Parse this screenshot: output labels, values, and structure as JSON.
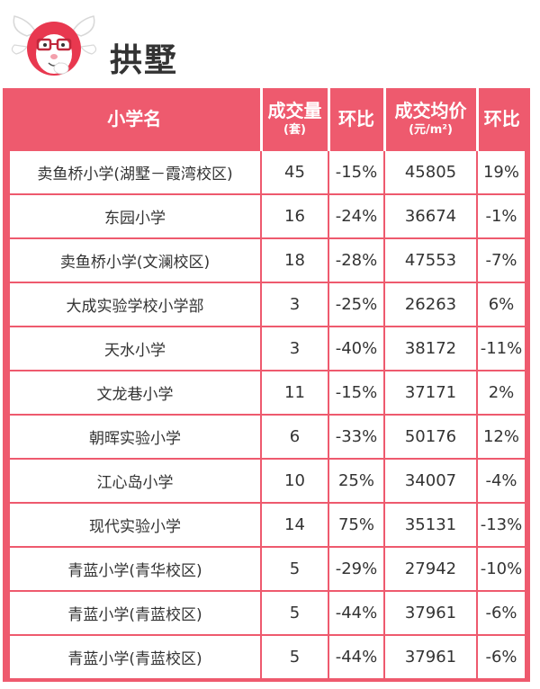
{
  "header": {
    "district": "拱墅"
  },
  "table": {
    "columns": [
      {
        "main": "小学名",
        "sub": ""
      },
      {
        "main": "成交量",
        "sub": "(套)"
      },
      {
        "main": "环比",
        "sub": ""
      },
      {
        "main": "成交均价",
        "sub": "(元/m²)"
      },
      {
        "main": "环比",
        "sub": ""
      }
    ],
    "rows": [
      {
        "name": "卖鱼桥小学(湖墅－霞湾校区)",
        "volume": "45",
        "volume_change": "-15%",
        "avg_price": "45805",
        "price_change": "19%"
      },
      {
        "name": "东园小学",
        "volume": "16",
        "volume_change": "-24%",
        "avg_price": "36674",
        "price_change": "-1%"
      },
      {
        "name": "卖鱼桥小学(文澜校区)",
        "volume": "18",
        "volume_change": "-28%",
        "avg_price": "47553",
        "price_change": "-7%"
      },
      {
        "name": "大成实验学校小学部",
        "volume": "3",
        "volume_change": "-25%",
        "avg_price": "26263",
        "price_change": "6%"
      },
      {
        "name": "天水小学",
        "volume": "3",
        "volume_change": "-40%",
        "avg_price": "38172",
        "price_change": "-11%"
      },
      {
        "name": "文龙巷小学",
        "volume": "11",
        "volume_change": "-15%",
        "avg_price": "37171",
        "price_change": "2%"
      },
      {
        "name": "朝晖实验小学",
        "volume": "6",
        "volume_change": "-33%",
        "avg_price": "50176",
        "price_change": "12%"
      },
      {
        "name": "江心岛小学",
        "volume": "10",
        "volume_change": "25%",
        "avg_price": "34007",
        "price_change": "-4%"
      },
      {
        "name": "现代实验小学",
        "volume": "14",
        "volume_change": "75%",
        "avg_price": "35131",
        "price_change": "-13%"
      },
      {
        "name": "青蓝小学(青华校区)",
        "volume": "5",
        "volume_change": "-29%",
        "avg_price": "27942",
        "price_change": "-10%"
      },
      {
        "name": "青蓝小学(青蓝校区)",
        "volume": "5",
        "volume_change": "-44%",
        "avg_price": "37961",
        "price_change": "-6%"
      },
      {
        "name": "青蓝小学(青蓝校区)",
        "volume": "5",
        "volume_change": "-44%",
        "avg_price": "37961",
        "price_change": "-6%"
      }
    ]
  },
  "colors": {
    "accent": "#ee5a6e",
    "text": "#333333"
  },
  "icons": {
    "logo": "mascot-logo-icon"
  }
}
